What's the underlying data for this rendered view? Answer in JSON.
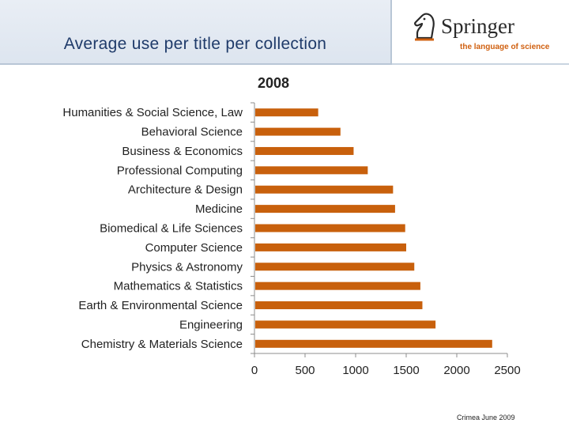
{
  "slide": {
    "title": "Average use per title per collection",
    "footer": "Crimea June 2009"
  },
  "logo": {
    "name": "Springer",
    "tagline": "the language of science",
    "icon": "chess-knight-icon",
    "accent_color": "#d06010"
  },
  "chart_data": {
    "type": "bar",
    "orientation": "horizontal",
    "title": "2008",
    "xlabel": "",
    "ylabel": "",
    "categories": [
      "Humanities & Social Science, Law",
      "Behavioral Science",
      "Business & Economics",
      "Professional Computing",
      "Architecture & Design",
      "Medicine",
      "Biomedical & Life Sciences",
      "Computer Science",
      "Physics & Astronomy",
      "Mathematics & Statistics",
      "Earth & Environmental Science",
      "Engineering",
      "Chemistry & Materials Science"
    ],
    "values": [
      630,
      850,
      980,
      1120,
      1370,
      1390,
      1490,
      1500,
      1580,
      1640,
      1660,
      1790,
      2350
    ],
    "xlim": [
      0,
      2500
    ],
    "xticks": [
      0,
      500,
      1000,
      1500,
      2000,
      2500
    ],
    "grid": false,
    "legend": "none",
    "bar_color": "#c8600c"
  }
}
